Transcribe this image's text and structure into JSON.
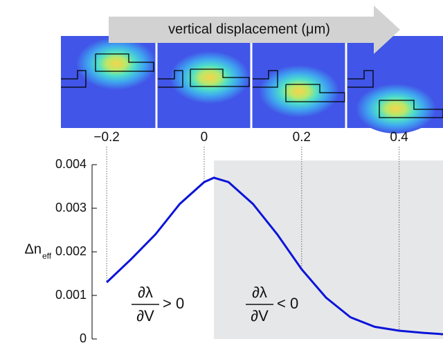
{
  "chart_data": {
    "type": "line",
    "xlabel": "vertical displacement (μm)",
    "y_label": {
      "main": "Δn",
      "sub": "eff"
    },
    "x": [
      -0.2,
      -0.15,
      -0.1,
      -0.05,
      0,
      0.02,
      0.05,
      0.1,
      0.15,
      0.2,
      0.25,
      0.3,
      0.35,
      0.4,
      0.45,
      0.49
    ],
    "values": [
      0.0013,
      0.00183,
      0.0024,
      0.0031,
      0.0036,
      0.0037,
      0.0036,
      0.0031,
      0.0024,
      0.0016,
      0.00095,
      0.0005,
      0.00028,
      0.00019,
      0.00014,
      0.00011
    ],
    "color": "#0a14d8",
    "xlim": [
      -0.23,
      0.49
    ],
    "ylim": [
      0,
      0.004
    ],
    "xticks": [
      {
        "value": -0.2,
        "label": "−0.2"
      },
      0,
      0.2,
      0.4
    ],
    "yticks": [
      0,
      0.001,
      0.002,
      0.003,
      0.004
    ],
    "shade_from": 0.02,
    "annotations": [
      {
        "numerator": "∂λ",
        "denominator": "∂V",
        "relation": "> 0"
      },
      {
        "numerator": "∂λ",
        "denominator": "∂V",
        "relation": "< 0"
      }
    ]
  }
}
